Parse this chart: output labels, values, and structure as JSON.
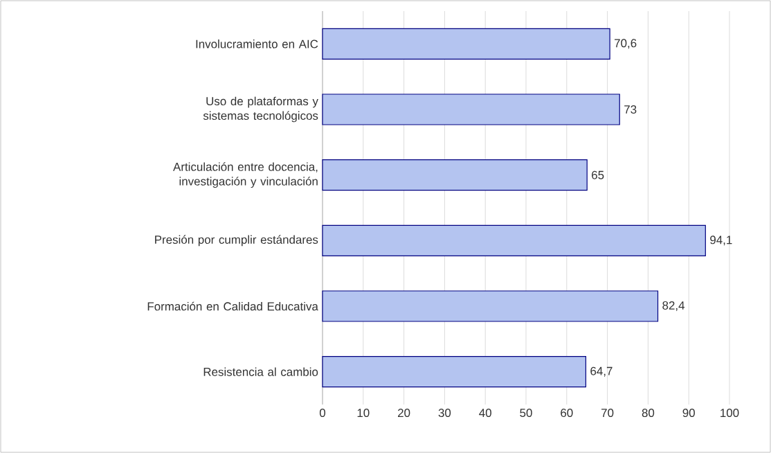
{
  "chart_data": {
    "type": "bar",
    "orientation": "horizontal",
    "categories": [
      "Involucramiento en AIC",
      "Uso de plataformas y sistemas tecnológicos",
      "Articulación entre docencia, investigación y vinculación",
      "Presión por cumplir estándares",
      "Formación en Calidad Educativa",
      "Resistencia al cambio"
    ],
    "values": [
      70.6,
      73,
      65,
      94.1,
      82.4,
      64.7
    ],
    "value_labels": [
      "70,6",
      "73",
      "65",
      "94,1",
      "82,4",
      "64,7"
    ],
    "color": "#b4c4f0",
    "xlim": [
      0,
      100
    ],
    "xticks": [
      0,
      10,
      20,
      30,
      40,
      50,
      60,
      70,
      80,
      90,
      100
    ],
    "grid": "x"
  }
}
